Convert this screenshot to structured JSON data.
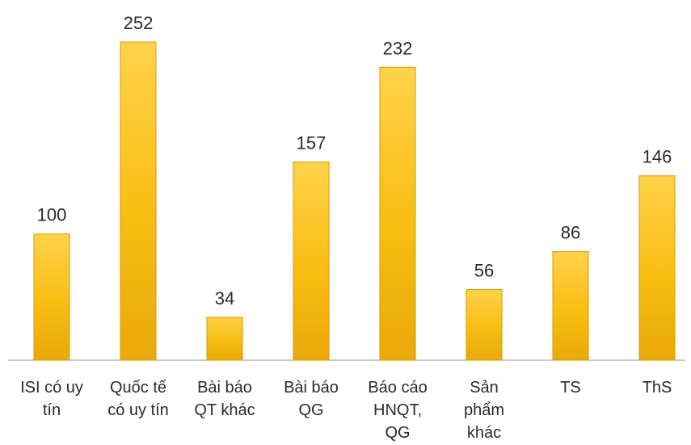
{
  "chart_data": {
    "type": "bar",
    "categories": [
      [
        "ISI có uy",
        "tín"
      ],
      [
        "Quốc tế",
        "có uy tín"
      ],
      [
        "Bài báo",
        "QT khác"
      ],
      [
        "Bài báo",
        "QG"
      ],
      [
        "Báo cáo",
        "HNQT,",
        "QG"
      ],
      [
        "Sản",
        "phẩm",
        "khác"
      ],
      [
        "TS"
      ],
      [
        "ThS"
      ]
    ],
    "values": [
      100,
      252,
      34,
      157,
      232,
      56,
      86,
      146
    ],
    "ylim": [
      0,
      252
    ],
    "grid": false,
    "colors": {
      "bar_top": "#ffd24a",
      "bar_mid": "#f9bd12",
      "bar_bottom": "#e8a90a",
      "bar_edge": "#d99a05",
      "axis": "#9a9a9a"
    }
  }
}
